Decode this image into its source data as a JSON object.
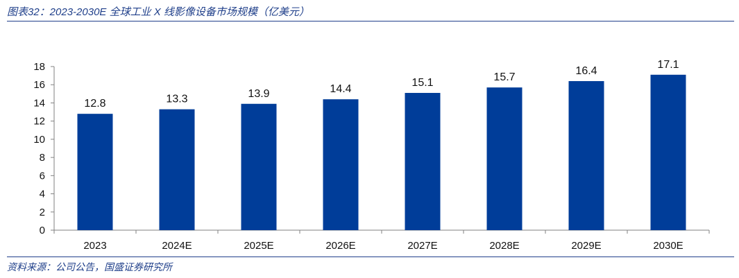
{
  "caption": "图表32：2023-2030E 全球工业 X 线影像设备市场规模（亿美元）",
  "source": "资料来源：公司公告，国盛证券研究所",
  "colors": {
    "bar": "#003d99",
    "rule": "#1f3f8a",
    "axis": "#808080"
  },
  "chart_data": {
    "type": "bar",
    "title": "",
    "xlabel": "",
    "ylabel": "",
    "categories": [
      "2023",
      "2024E",
      "2025E",
      "2026E",
      "2027E",
      "2028E",
      "2029E",
      "2030E"
    ],
    "values": [
      12.8,
      13.3,
      13.9,
      14.4,
      15.1,
      15.7,
      16.4,
      17.1
    ],
    "ylim": [
      0,
      18
    ],
    "yticks": [
      0,
      2,
      4,
      6,
      8,
      10,
      12,
      14,
      16,
      18
    ],
    "data_labels": true,
    "grid": false,
    "legend": "none"
  }
}
